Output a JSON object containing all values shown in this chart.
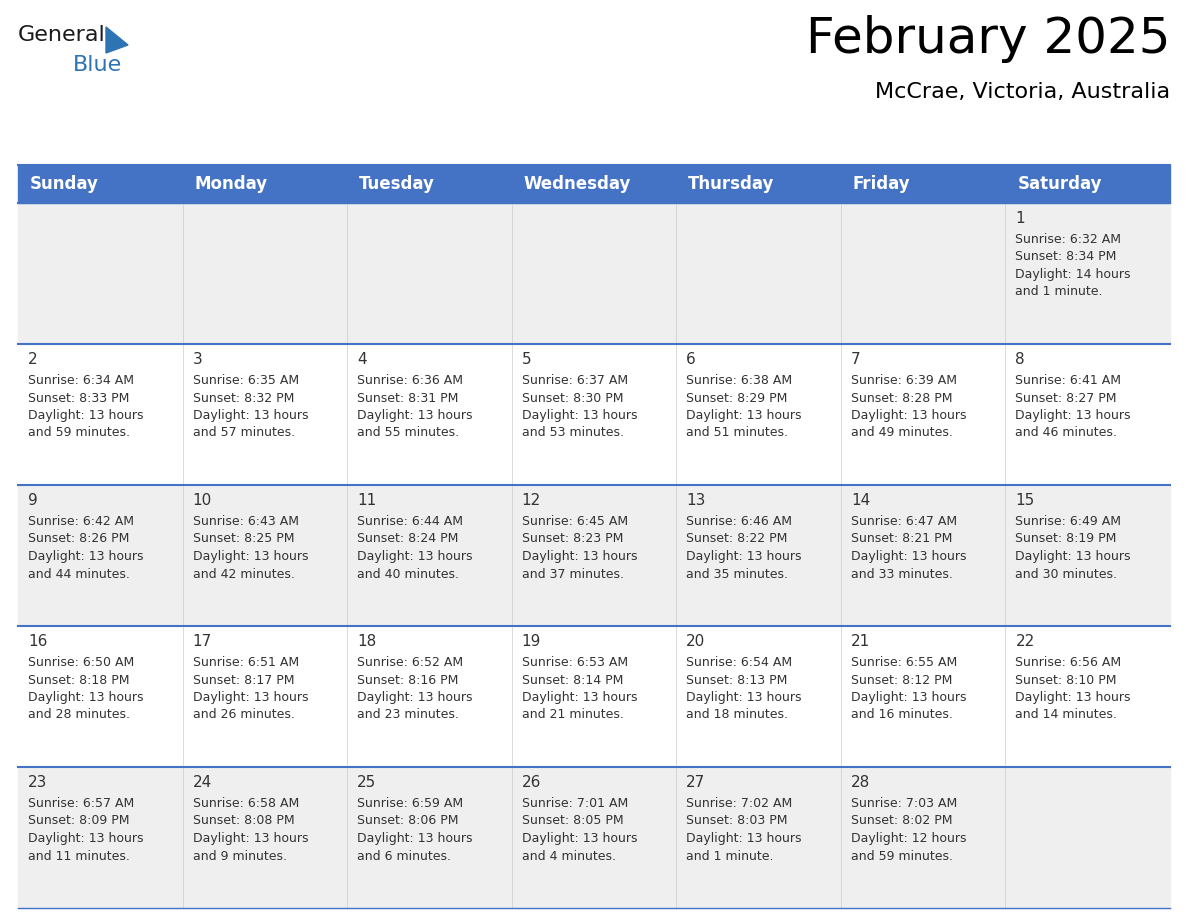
{
  "title": "February 2025",
  "subtitle": "McCrae, Victoria, Australia",
  "header_bg": "#4472C4",
  "header_text_color": "#FFFFFF",
  "cell_bg_odd": "#EFEFEF",
  "cell_bg_even": "#FFFFFF",
  "grid_line_color": "#4472C4",
  "date_color": "#333333",
  "text_color": "#333333",
  "logo_general_color": "#1a1a1a",
  "logo_blue_color": "#2E74B5",
  "logo_triangle_color": "#2E74B5",
  "day_headers": [
    "Sunday",
    "Monday",
    "Tuesday",
    "Wednesday",
    "Thursday",
    "Friday",
    "Saturday"
  ],
  "weeks": [
    [
      null,
      null,
      null,
      null,
      null,
      null,
      1
    ],
    [
      2,
      3,
      4,
      5,
      6,
      7,
      8
    ],
    [
      9,
      10,
      11,
      12,
      13,
      14,
      15
    ],
    [
      16,
      17,
      18,
      19,
      20,
      21,
      22
    ],
    [
      23,
      24,
      25,
      26,
      27,
      28,
      null
    ]
  ],
  "day_data": {
    "1": {
      "sunrise": "6:32 AM",
      "sunset": "8:34 PM",
      "daylight": "14 hours and 1 minute."
    },
    "2": {
      "sunrise": "6:34 AM",
      "sunset": "8:33 PM",
      "daylight": "13 hours and 59 minutes."
    },
    "3": {
      "sunrise": "6:35 AM",
      "sunset": "8:32 PM",
      "daylight": "13 hours and 57 minutes."
    },
    "4": {
      "sunrise": "6:36 AM",
      "sunset": "8:31 PM",
      "daylight": "13 hours and 55 minutes."
    },
    "5": {
      "sunrise": "6:37 AM",
      "sunset": "8:30 PM",
      "daylight": "13 hours and 53 minutes."
    },
    "6": {
      "sunrise": "6:38 AM",
      "sunset": "8:29 PM",
      "daylight": "13 hours and 51 minutes."
    },
    "7": {
      "sunrise": "6:39 AM",
      "sunset": "8:28 PM",
      "daylight": "13 hours and 49 minutes."
    },
    "8": {
      "sunrise": "6:41 AM",
      "sunset": "8:27 PM",
      "daylight": "13 hours and 46 minutes."
    },
    "9": {
      "sunrise": "6:42 AM",
      "sunset": "8:26 PM",
      "daylight": "13 hours and 44 minutes."
    },
    "10": {
      "sunrise": "6:43 AM",
      "sunset": "8:25 PM",
      "daylight": "13 hours and 42 minutes."
    },
    "11": {
      "sunrise": "6:44 AM",
      "sunset": "8:24 PM",
      "daylight": "13 hours and 40 minutes."
    },
    "12": {
      "sunrise": "6:45 AM",
      "sunset": "8:23 PM",
      "daylight": "13 hours and 37 minutes."
    },
    "13": {
      "sunrise": "6:46 AM",
      "sunset": "8:22 PM",
      "daylight": "13 hours and 35 minutes."
    },
    "14": {
      "sunrise": "6:47 AM",
      "sunset": "8:21 PM",
      "daylight": "13 hours and 33 minutes."
    },
    "15": {
      "sunrise": "6:49 AM",
      "sunset": "8:19 PM",
      "daylight": "13 hours and 30 minutes."
    },
    "16": {
      "sunrise": "6:50 AM",
      "sunset": "8:18 PM",
      "daylight": "13 hours and 28 minutes."
    },
    "17": {
      "sunrise": "6:51 AM",
      "sunset": "8:17 PM",
      "daylight": "13 hours and 26 minutes."
    },
    "18": {
      "sunrise": "6:52 AM",
      "sunset": "8:16 PM",
      "daylight": "13 hours and 23 minutes."
    },
    "19": {
      "sunrise": "6:53 AM",
      "sunset": "8:14 PM",
      "daylight": "13 hours and 21 minutes."
    },
    "20": {
      "sunrise": "6:54 AM",
      "sunset": "8:13 PM",
      "daylight": "13 hours and 18 minutes."
    },
    "21": {
      "sunrise": "6:55 AM",
      "sunset": "8:12 PM",
      "daylight": "13 hours and 16 minutes."
    },
    "22": {
      "sunrise": "6:56 AM",
      "sunset": "8:10 PM",
      "daylight": "13 hours and 14 minutes."
    },
    "23": {
      "sunrise": "6:57 AM",
      "sunset": "8:09 PM",
      "daylight": "13 hours and 11 minutes."
    },
    "24": {
      "sunrise": "6:58 AM",
      "sunset": "8:08 PM",
      "daylight": "13 hours and 9 minutes."
    },
    "25": {
      "sunrise": "6:59 AM",
      "sunset": "8:06 PM",
      "daylight": "13 hours and 6 minutes."
    },
    "26": {
      "sunrise": "7:01 AM",
      "sunset": "8:05 PM",
      "daylight": "13 hours and 4 minutes."
    },
    "27": {
      "sunrise": "7:02 AM",
      "sunset": "8:03 PM",
      "daylight": "13 hours and 1 minute."
    },
    "28": {
      "sunrise": "7:03 AM",
      "sunset": "8:02 PM",
      "daylight": "12 hours and 59 minutes."
    }
  }
}
